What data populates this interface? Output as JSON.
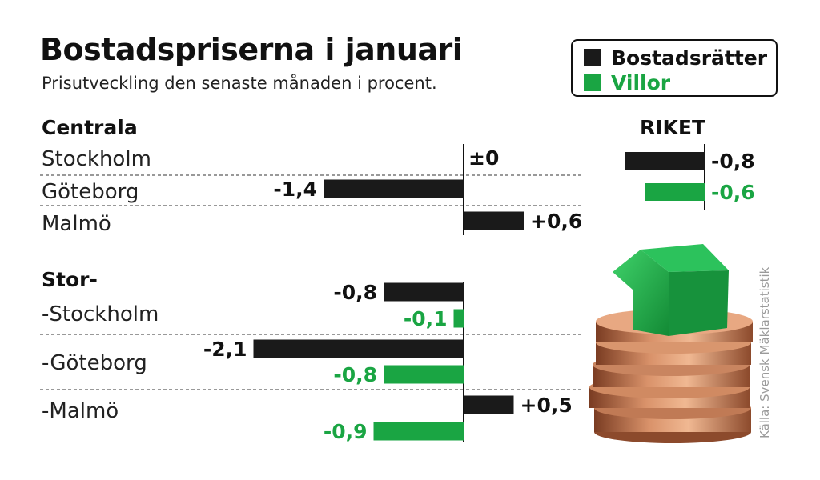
{
  "chart_data": {
    "type": "bar",
    "title": "Bostadspriserna i januari",
    "subtitle": "Prisutveckling den senaste månaden i procent.",
    "source": "Källa: Svensk Mäklarstatistik",
    "legend": {
      "placement": "top-right",
      "items": [
        {
          "name": "Bostadsrätter",
          "color": "#1a1a1a"
        },
        {
          "name": "Villor",
          "color": "#1aa543"
        }
      ]
    },
    "sections": [
      {
        "heading": "Centrala",
        "rows": [
          {
            "category": "Stockholm",
            "values": [
              {
                "series": "Bostadsrätter",
                "value": 0,
                "label": "±0"
              }
            ]
          },
          {
            "category": "Göteborg",
            "values": [
              {
                "series": "Bostadsrätter",
                "value": -1.4,
                "label": "-1,4"
              }
            ]
          },
          {
            "category": "Malmö",
            "values": [
              {
                "series": "Bostadsrätter",
                "value": 0.6,
                "label": "+0,6"
              }
            ]
          }
        ]
      },
      {
        "heading": "Stor-",
        "rows": [
          {
            "category": "-Stockholm",
            "values": [
              {
                "series": "Bostadsrätter",
                "value": -0.8,
                "label": "-0,8"
              },
              {
                "series": "Villor",
                "value": -0.1,
                "label": "-0,1"
              }
            ]
          },
          {
            "category": "-Göteborg",
            "values": [
              {
                "series": "Bostadsrätter",
                "value": -2.1,
                "label": "-2,1"
              },
              {
                "series": "Villor",
                "value": -0.8,
                "label": "-0,8"
              }
            ]
          },
          {
            "category": "-Malmö",
            "values": [
              {
                "series": "Bostadsrätter",
                "value": 0.5,
                "label": "+0,5"
              },
              {
                "series": "Villor",
                "value": -0.9,
                "label": "-0,9"
              }
            ]
          }
        ]
      }
    ],
    "riket": {
      "heading": "RIKET",
      "values": [
        {
          "series": "Bostadsrätter",
          "value": -0.8,
          "label": "-0,8"
        },
        {
          "series": "Villor",
          "value": -0.6,
          "label": "-0,6"
        }
      ]
    }
  }
}
